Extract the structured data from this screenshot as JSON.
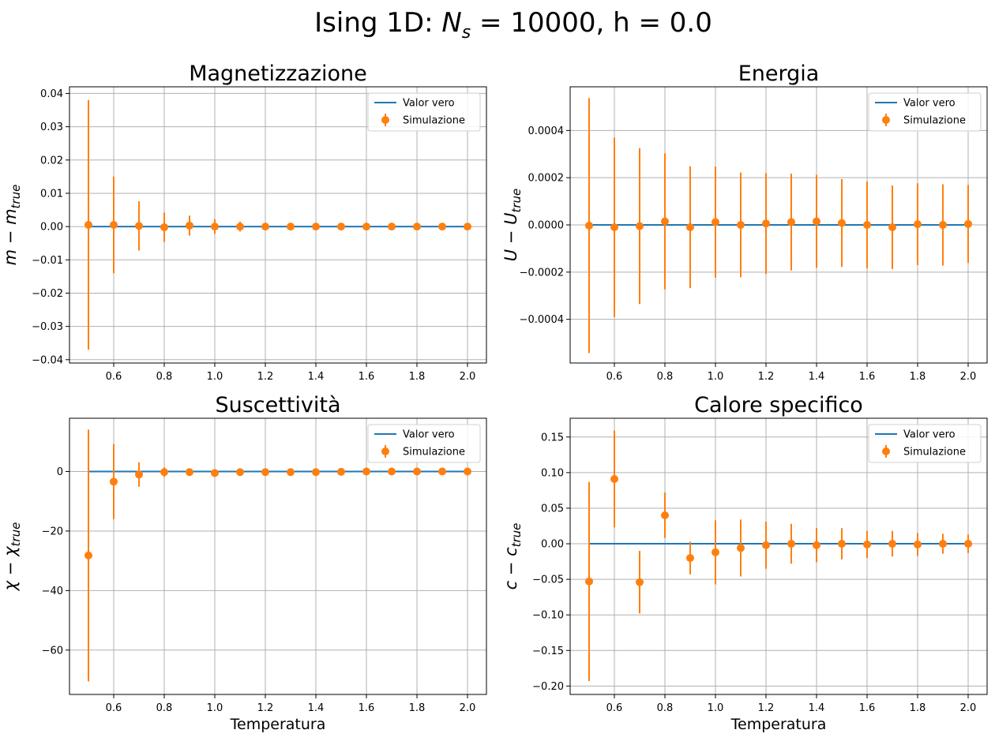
{
  "figure": {
    "title_prefix": "Ising 1D: ",
    "title_var": "N",
    "title_sub": "s",
    "title_suffix": " = 10000, h = 0.0"
  },
  "colors": {
    "line": "#1f77b4",
    "points": "#ff7f0e",
    "grid": "#b0b0b0",
    "axes": "#000000"
  },
  "chart_data": [
    {
      "type": "scatter",
      "title": "Magnetizzazione",
      "xlabel": "",
      "ylabel": {
        "base": "m",
        "minus": " − ",
        "var": "m",
        "sub": "true"
      },
      "xlim": [
        0.425,
        2.075
      ],
      "ylim": [
        -0.041,
        0.042
      ],
      "xticks": [
        0.6,
        0.8,
        1.0,
        1.2,
        1.4,
        1.6,
        1.8,
        2.0
      ],
      "xtick_labels": [
        "0.6",
        "0.8",
        "1.0",
        "1.2",
        "1.4",
        "1.6",
        "1.8",
        "2.0"
      ],
      "yticks": [
        0.04,
        0.03,
        0.02,
        0.01,
        0.0,
        -0.01,
        -0.02,
        -0.03,
        -0.04
      ],
      "ytick_labels": [
        "0.04",
        "0.03",
        "0.02",
        "0.01",
        "0.00",
        "−0.01",
        "−0.02",
        "−0.03",
        "−0.04"
      ],
      "grid": true,
      "legend": {
        "position": "top-right",
        "line_label": "Valor vero",
        "points_label": "Simulazione"
      },
      "line": {
        "x": [
          0.5,
          2.0
        ],
        "y": [
          0,
          0
        ]
      },
      "series": [
        {
          "name": "Simulazione",
          "x": [
            0.5,
            0.6,
            0.7,
            0.8,
            0.9,
            1.0,
            1.1,
            1.2,
            1.3,
            1.4,
            1.5,
            1.6,
            1.7,
            1.8,
            1.9,
            2.0
          ],
          "y": [
            0.0005,
            0.0005,
            0.0002,
            -0.0002,
            0.0003,
            0.0,
            0.0,
            0.0,
            0.0,
            0.0,
            0.0,
            0.0,
            0.0,
            0.0,
            0.0,
            0.0
          ],
          "err": [
            0.0375,
            0.0145,
            0.0074,
            0.0044,
            0.003,
            0.0022,
            0.0015,
            0.0008,
            0.0005,
            0.0003,
            0.0002,
            0.0001,
            0.0001,
            0.0001,
            0.0,
            0.0
          ]
        }
      ]
    },
    {
      "type": "scatter",
      "title": "Energia",
      "xlabel": "",
      "ylabel": {
        "base": "U",
        "minus": " − ",
        "var": "U",
        "sub": "true"
      },
      "xlim": [
        0.425,
        2.075
      ],
      "ylim": [
        -0.000585,
        0.000585
      ],
      "xticks": [
        0.6,
        0.8,
        1.0,
        1.2,
        1.4,
        1.6,
        1.8,
        2.0
      ],
      "xtick_labels": [
        "0.6",
        "0.8",
        "1.0",
        "1.2",
        "1.4",
        "1.6",
        "1.8",
        "2.0"
      ],
      "yticks": [
        0.0004,
        0.0002,
        0.0,
        -0.0002,
        -0.0004
      ],
      "ytick_labels": [
        "0.0004",
        "0.0002",
        "0.0000",
        "−0.0002",
        "−0.0004"
      ],
      "grid": true,
      "legend": {
        "position": "top-right",
        "line_label": "Valor vero",
        "points_label": "Simulazione"
      },
      "line": {
        "x": [
          0.5,
          2.0
        ],
        "y": [
          0,
          0
        ]
      },
      "series": [
        {
          "name": "Simulazione",
          "x": [
            0.5,
            0.6,
            0.7,
            0.8,
            0.9,
            1.0,
            1.1,
            1.2,
            1.3,
            1.4,
            1.5,
            1.6,
            1.7,
            1.8,
            1.9,
            2.0
          ],
          "y": [
            -3e-06,
            -1e-05,
            -5e-06,
            1.5e-05,
            -1e-05,
            1.2e-05,
            0.0,
            6e-06,
            1.2e-05,
            1.5e-05,
            8e-06,
            0.0,
            -1e-05,
            3e-06,
            0.0,
            4e-06
          ],
          "err": [
            0.00054,
            0.00038,
            0.00033,
            0.000288,
            0.000258,
            0.000235,
            0.000222,
            0.000213,
            0.000205,
            0.000197,
            0.000186,
            0.000184,
            0.000177,
            0.000173,
            0.000172,
            0.000165
          ]
        }
      ]
    },
    {
      "type": "scatter",
      "title": "Suscettività",
      "xlabel": "Temperatura",
      "ylabel": {
        "base": "χ",
        "minus": " − ",
        "var": "χ",
        "sub": "true"
      },
      "xlim": [
        0.425,
        2.075
      ],
      "ylim": [
        -74.9,
        17.9
      ],
      "xticks": [
        0.6,
        0.8,
        1.0,
        1.2,
        1.4,
        1.6,
        1.8,
        2.0
      ],
      "xtick_labels": [
        "0.6",
        "0.8",
        "1.0",
        "1.2",
        "1.4",
        "1.6",
        "1.8",
        "2.0"
      ],
      "yticks": [
        0,
        -20,
        -40,
        -60
      ],
      "ytick_labels": [
        "0",
        "−20",
        "−40",
        "−60"
      ],
      "grid": true,
      "legend": {
        "position": "top-right",
        "line_label": "Valor vero",
        "points_label": "Simulazione"
      },
      "line": {
        "x": [
          0.5,
          2.0
        ],
        "y": [
          0,
          0
        ]
      },
      "series": [
        {
          "name": "Simulazione",
          "x": [
            0.5,
            0.6,
            0.7,
            0.8,
            0.9,
            1.0,
            1.1,
            1.2,
            1.3,
            1.4,
            1.5,
            1.6,
            1.7,
            1.8,
            1.9,
            2.0
          ],
          "y": [
            -28.2,
            -3.4,
            -1.0,
            -0.2,
            -0.2,
            -0.5,
            -0.2,
            -0.2,
            -0.2,
            -0.2,
            -0.1,
            0.0,
            0.0,
            0.0,
            0.0,
            0.0
          ],
          "err": [
            42.3,
            12.6,
            4.1,
            1.6,
            1.0,
            0.7,
            0.5,
            0.4,
            0.3,
            0.2,
            0.2,
            0.1,
            0.1,
            0.1,
            0.1,
            0.1
          ]
        }
      ]
    },
    {
      "type": "scatter",
      "title": "Calore specifico",
      "xlabel": "Temperatura",
      "ylabel": {
        "base": "c",
        "minus": " − ",
        "var": "c",
        "sub": "true"
      },
      "xlim": [
        0.425,
        2.075
      ],
      "ylim": [
        -0.2118,
        0.1764
      ],
      "xticks": [
        0.6,
        0.8,
        1.0,
        1.2,
        1.4,
        1.6,
        1.8,
        2.0
      ],
      "xtick_labels": [
        "0.6",
        "0.8",
        "1.0",
        "1.2",
        "1.4",
        "1.6",
        "1.8",
        "2.0"
      ],
      "yticks": [
        0.15,
        0.1,
        0.05,
        0.0,
        -0.05,
        -0.1,
        -0.15,
        -0.2
      ],
      "ytick_labels": [
        "0.15",
        "0.10",
        "0.05",
        "0.00",
        "−0.05",
        "−0.10",
        "−0.15",
        "−0.20"
      ],
      "grid": true,
      "legend": {
        "position": "top-right",
        "line_label": "Valor vero",
        "points_label": "Simulazione"
      },
      "line": {
        "x": [
          0.5,
          2.0
        ],
        "y": [
          0,
          0
        ]
      },
      "series": [
        {
          "name": "Simulazione",
          "x": [
            0.5,
            0.6,
            0.7,
            0.8,
            0.9,
            1.0,
            1.1,
            1.2,
            1.3,
            1.4,
            1.5,
            1.6,
            1.7,
            1.8,
            1.9,
            2.0
          ],
          "y": [
            -0.053,
            0.091,
            -0.054,
            0.04,
            -0.02,
            -0.012,
            -0.006,
            -0.002,
            0.0,
            -0.002,
            0.0,
            -0.001,
            0.0,
            -0.001,
            0.0,
            0.0
          ],
          "err": [
            0.14,
            0.068,
            0.044,
            0.032,
            0.023,
            0.045,
            0.04,
            0.033,
            0.028,
            0.024,
            0.022,
            0.019,
            0.018,
            0.016,
            0.014,
            0.013
          ]
        }
      ]
    }
  ]
}
